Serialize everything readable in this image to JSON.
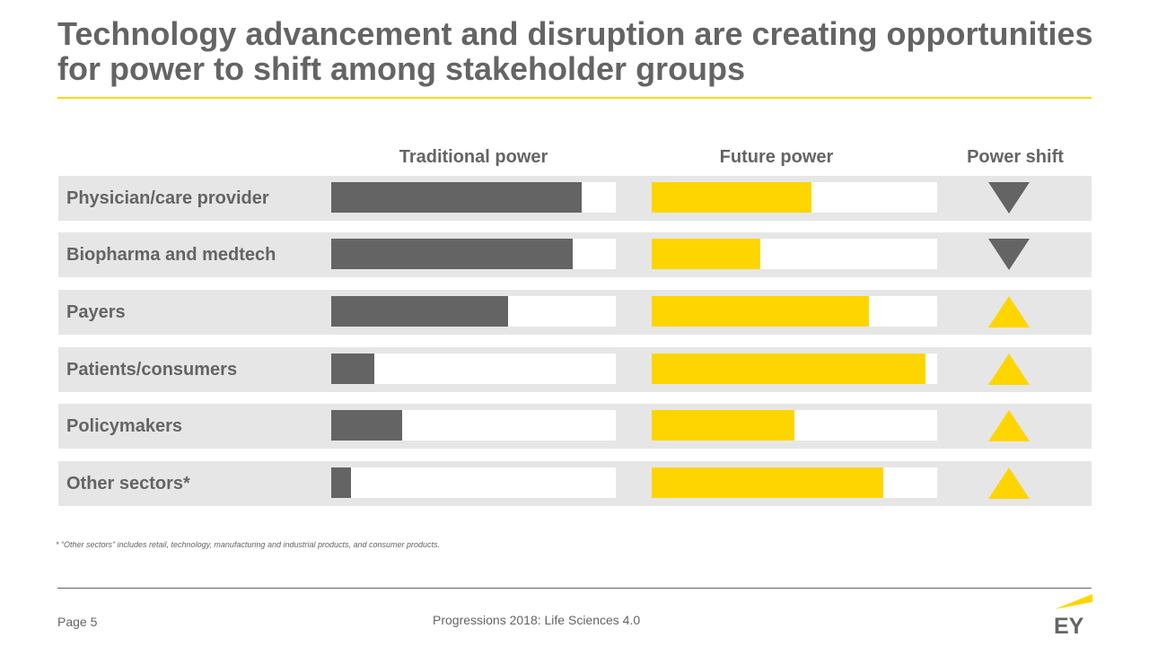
{
  "title": "Technology advancement and disruption are creating opportunities for power to shift among stakeholder groups",
  "colors": {
    "accent": "#ffd500",
    "dark": "#646464",
    "row_bg": "#e6e6e6"
  },
  "chart_data": {
    "type": "bar",
    "column_headers": {
      "traditional": "Traditional power",
      "future": "Future power",
      "shift": "Power shift"
    },
    "categories": [
      "Physician/care provider",
      "Biopharma and medtech",
      "Payers",
      "Patients/consumers",
      "Policymakers",
      "Other sectors*"
    ],
    "series": [
      {
        "name": "Traditional power",
        "values": [
          0.88,
          0.85,
          0.62,
          0.15,
          0.25,
          0.07
        ]
      },
      {
        "name": "Future power",
        "values": [
          0.56,
          0.38,
          0.76,
          0.96,
          0.5,
          0.81
        ]
      }
    ],
    "shift_direction": [
      "down",
      "down",
      "up",
      "up",
      "up",
      "up"
    ],
    "shift_colors": {
      "down": "#646464",
      "up": "#ffd500"
    },
    "ylim": [
      0,
      1
    ]
  },
  "footnote": "* “Other sectors” includes retail, technology, manufacturing and industrial products, and consumer products.",
  "footer": {
    "page": "Page 5",
    "center": "Progressions 2018: Life Sciences 4.0",
    "logo_text": "EY"
  }
}
